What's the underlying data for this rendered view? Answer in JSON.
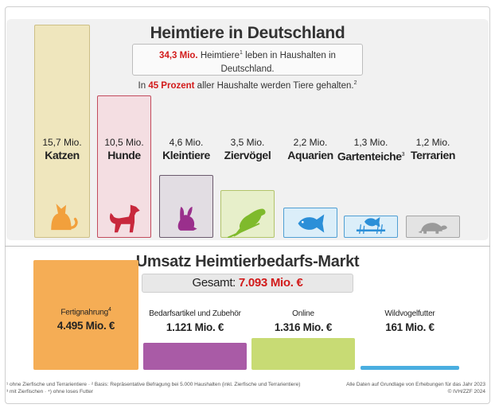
{
  "header": {
    "title": "Heimtiere in Deutschland",
    "info_line1_a": "34,3 Mio.",
    "info_line1_b": " Heimtiere",
    "info_line1_sup": "1",
    "info_line1_c": " leben in Haushalten in Deutschland.",
    "info_line2_a": "In ",
    "info_line2_b": "45 Prozent",
    "info_line2_c": " aller Haushalte werden Tiere gehalten.",
    "info_line2_sup": "2"
  },
  "market_header": {
    "title": "Umsatz Heimtierbedarfs-Markt",
    "total_label": "Gesamt: ",
    "total_value": "7.093 Mio. €"
  },
  "chart_data": [
    {
      "type": "bar",
      "categories": [
        "Katzen",
        "Hunde",
        "Kleintiere",
        "Ziervögel",
        "Aquarien",
        "Gartenteiche",
        "Terrarien"
      ],
      "values": [
        15.7,
        10.5,
        4.6,
        3.5,
        2.2,
        1.3,
        1.2
      ],
      "value_labels": [
        "15,7 Mio.",
        "10,5 Mio.",
        "4,6 Mio.",
        "3,5 Mio.",
        "2,2 Mio.",
        "1,3 Mio.",
        "1,2 Mio."
      ],
      "title": "Heimtiere in Deutschland",
      "unit": "Mio.",
      "colors": [
        "#efe6bd",
        "#f4dee2",
        "#e2dde3",
        "#e7efca",
        "#dbeef9",
        "#dbeef9",
        "#e3e3e3"
      ],
      "border_colors": [
        "#cdbf86",
        "#c24b5c",
        "#6b5a6d",
        "#b2c46a",
        "#4f9fd3",
        "#4f9fd3",
        "#a5a5a5"
      ],
      "icon_colors": [
        "#f2a03c",
        "#c8283c",
        "#9a2f8c",
        "#7fba2c",
        "#2b8fd8",
        "#2b8fd8",
        "#9a9a9a"
      ]
    },
    {
      "type": "bar",
      "categories": [
        "Fertignahrung",
        "Bedarfsartikel und Zubehör",
        "Online",
        "Wildvogelfutter"
      ],
      "values": [
        4495,
        1121,
        1316,
        161
      ],
      "value_labels": [
        "4.495 Mio. €",
        "1.121 Mio. €",
        "1.316 Mio. €",
        "161 Mio. €"
      ],
      "title": "Umsatz Heimtierbedarfs-Markt",
      "unit": "Mio. €",
      "colors": [
        "#f5ad55",
        "#a95ba6",
        "#c8db74",
        "#4aaee0"
      ]
    }
  ],
  "footer": {
    "left_line1": "¹ ohne Zierfische und Terrarientiere · ² Basis: Repräsentative Befragung bei 5.000 Haushalten (inkl. Zierfische und Terrarientiere)",
    "left_line2": "³ mit Zierfischen · ⁴) ohne loses Futter",
    "right_line1": "Alle Daten auf Grundlage von Erhebungen für das Jahr 2023",
    "right_line2": "© IVH/ZZF 2024"
  },
  "footnote_marks": {
    "gartenteiche": "3",
    "fertignahrung": "4"
  }
}
